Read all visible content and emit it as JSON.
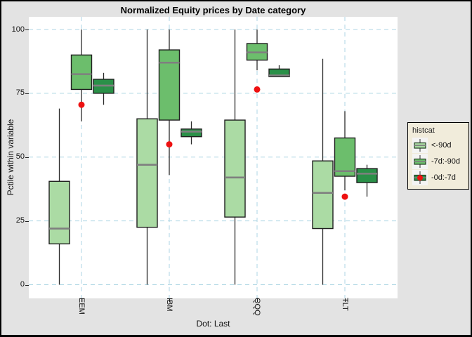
{
  "colors": {
    "background": "#e3e3e3",
    "panel": "#ffffff",
    "grid": "#aed6e4",
    "box_border": "#1f1f1f",
    "whisker": "#2b2b2b",
    "median": "#7f7f7f",
    "light_green": "#abdba4",
    "medium_green": "#6cbe6c",
    "dark_green": "#2a9048",
    "dot_red": "#ee1111",
    "legend_bg": "#f1ecdb",
    "legend_key_bg": "#f4f4f4"
  },
  "legend": {
    "title": "histcat",
    "items": [
      {
        "label": "<-90d",
        "color": "#abdba4",
        "has_dot": false
      },
      {
        "label": "-7d:-90d",
        "color": "#6cbe6c",
        "has_dot": false
      },
      {
        "label": "-0d:-7d",
        "color": "#2a9048",
        "has_dot": true
      }
    ]
  },
  "chart_data": {
    "type": "boxplot",
    "title": "Normalized Equity prices by Date category",
    "xlabel": "Dot: Last",
    "ylabel": "Pctile within variable",
    "ylim": [
      0,
      100
    ],
    "y_ticks": [
      0,
      25,
      50,
      75,
      100
    ],
    "grid": "dashed light-blue, horizontal at ticks and vertical at categories",
    "legend_position": "right",
    "categories": [
      "EEM",
      "IBM",
      "QQQ",
      "TLT"
    ],
    "series": [
      {
        "name": "<-90d",
        "color": "#abdba4",
        "boxes": [
          {
            "low": 0,
            "q1": 16,
            "median": 22,
            "q3": 40.5,
            "high": 69
          },
          {
            "low": 0,
            "q1": 22.5,
            "median": 47,
            "q3": 65,
            "high": 100
          },
          {
            "low": 0,
            "q1": 26.5,
            "median": 42,
            "q3": 64.5,
            "high": 100
          },
          {
            "low": 0,
            "q1": 22,
            "median": 36,
            "q3": 48.5,
            "high": 88.5
          }
        ]
      },
      {
        "name": "-7d:-90d",
        "color": "#6cbe6c",
        "boxes": [
          {
            "low": 64,
            "q1": 76.5,
            "median": 82.5,
            "q3": 90,
            "high": 100
          },
          {
            "low": 43,
            "q1": 64.5,
            "median": 87,
            "q3": 92,
            "high": 100
          },
          {
            "low": 84,
            "q1": 88,
            "median": 91,
            "q3": 94.5,
            "high": 100
          },
          {
            "low": 37,
            "q1": 42.5,
            "median": 44.5,
            "q3": 57.5,
            "high": 68
          }
        ]
      },
      {
        "name": "-0d:-7d",
        "color": "#2a9048",
        "boxes": [
          {
            "low": 70.5,
            "q1": 75,
            "median": 78,
            "q3": 80.5,
            "high": 83
          },
          {
            "low": 55,
            "q1": 58,
            "median": 60,
            "q3": 61,
            "high": 64
          },
          {
            "low": 81.5,
            "q1": 81.5,
            "median": 82,
            "q3": 84.5,
            "high": 86
          },
          {
            "low": 34.5,
            "q1": 40,
            "median": 43.5,
            "q3": 45.5,
            "high": 47
          }
        ]
      }
    ],
    "last_dots": {
      "name": "Last",
      "color": "#ee1111",
      "values": [
        70.5,
        55,
        76.5,
        34.5
      ]
    }
  }
}
